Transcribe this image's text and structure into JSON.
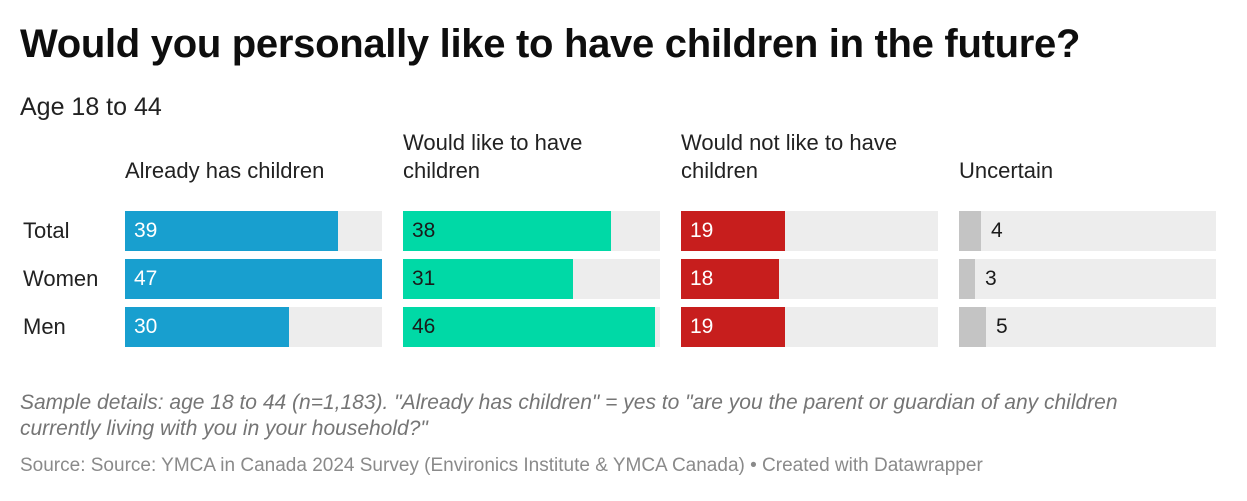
{
  "title": "Would you personally like to have children in the future?",
  "subtitle": "Age 18 to 44",
  "chart_data": {
    "type": "bar",
    "categories": [
      "Total",
      "Women",
      "Men"
    ],
    "xlim": [
      0,
      47
    ],
    "series": [
      {
        "name": "Already has children",
        "values": [
          39,
          47,
          30
        ],
        "color": "#189fcf",
        "label_color": "#ffffff"
      },
      {
        "name": "Would like to have children",
        "values": [
          38,
          31,
          46
        ],
        "color": "#00d9a6",
        "label_color": "#1a1a1a"
      },
      {
        "name": "Would not like to have children",
        "values": [
          19,
          18,
          19
        ],
        "color": "#c71e1d",
        "label_color": "#ffffff"
      },
      {
        "name": "Uncertain",
        "values": [
          4,
          3,
          5
        ],
        "color": "#c4c4c4",
        "label_color": "#1a1a1a"
      }
    ],
    "track_color": "#ededed"
  },
  "notes": "Sample details: age 18 to 44 (n=1,183). \"Already has children\" = yes to \"are you the parent or guardian of any children currently living with you in your household?\"",
  "source": "Source: Source: YMCA in Canada 2024 Survey (Environics Institute & YMCA Canada) • Created with Datawrapper"
}
